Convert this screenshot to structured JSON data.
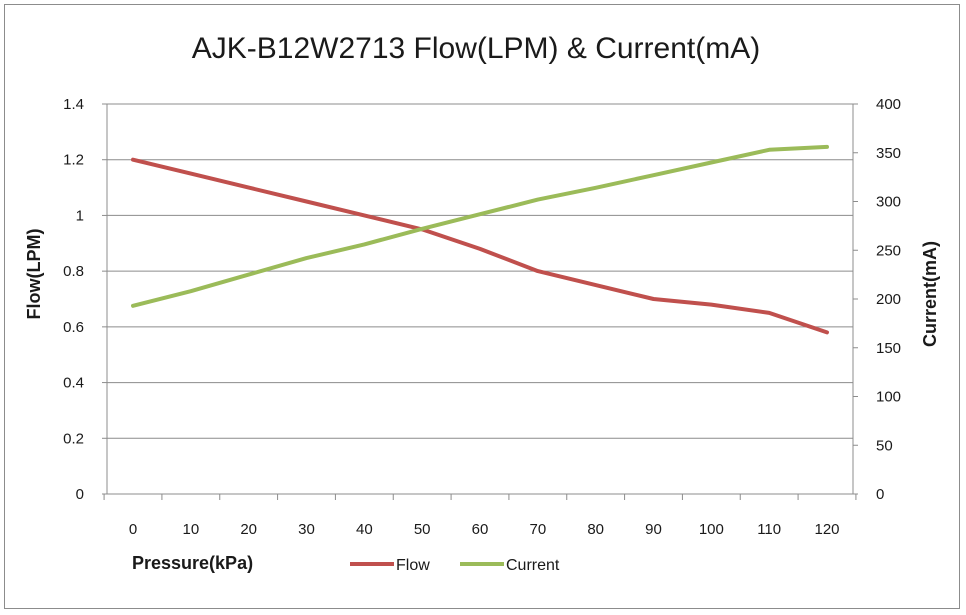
{
  "chart_data": {
    "type": "line",
    "title": "AJK-B12W2713 Flow(LPM) & Current(mA)",
    "xlabel": "Pressure(kPa)",
    "ylabel": "Flow(LPM)",
    "y2label": "Current(mA)",
    "x_ticks": [
      "0",
      "10",
      "20",
      "30",
      "40",
      "50",
      "60",
      "70",
      "80",
      "90",
      "100",
      "110",
      "120"
    ],
    "y_ticks": [
      "0",
      "0.2",
      "0.4",
      "0.6",
      "0.8",
      "1",
      "1.2",
      "1.4"
    ],
    "y2_ticks": [
      "0",
      "50",
      "100",
      "150",
      "200",
      "250",
      "300",
      "350",
      "400"
    ],
    "xlim": [
      0,
      120
    ],
    "ylim": [
      0,
      1.4
    ],
    "y2lim": [
      0,
      400
    ],
    "grid": "horizontal",
    "legend": "bottom",
    "series": [
      {
        "name": "Flow",
        "axis": "left",
        "color": "#c0504d",
        "x": [
          0,
          10,
          20,
          30,
          40,
          50,
          60,
          70,
          80,
          90,
          100,
          110,
          120
        ],
        "values": [
          1.2,
          1.15,
          1.1,
          1.05,
          1.0,
          0.95,
          0.88,
          0.8,
          0.75,
          0.7,
          0.68,
          0.65,
          0.58
        ]
      },
      {
        "name": "Current",
        "axis": "right",
        "color": "#9bbb59",
        "x": [
          0,
          10,
          20,
          30,
          40,
          50,
          60,
          70,
          80,
          90,
          100,
          110,
          120
        ],
        "values": [
          193,
          208,
          225,
          242,
          256,
          272,
          287,
          302,
          314,
          327,
          340,
          353,
          356
        ]
      }
    ]
  }
}
